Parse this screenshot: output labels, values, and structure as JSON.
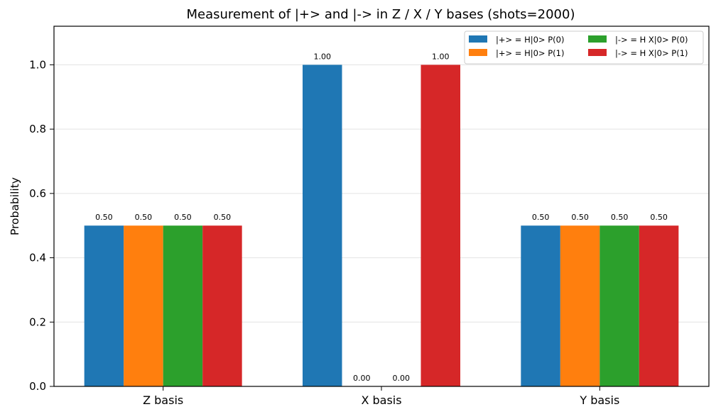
{
  "chart_data": {
    "type": "bar",
    "title": "Measurement of |+> and |-> in Z / X / Y bases (shots=2000)",
    "xlabel": "",
    "ylabel": "Probability",
    "ylim": [
      0,
      1.12
    ],
    "yticks": [
      "0.0",
      "0.2",
      "0.4",
      "0.6",
      "0.8",
      "1.0"
    ],
    "grid": "horizontal",
    "legend_position": "top-right",
    "categories": [
      "Z basis",
      "X basis",
      "Y basis"
    ],
    "series": [
      {
        "name": "|+> = H|0> P(0)",
        "color": "#1f77b4",
        "values": [
          0.5,
          1.0,
          0.5
        ],
        "labels": [
          "0.50",
          "1.00",
          "0.50"
        ]
      },
      {
        "name": "|+> = H|0> P(1)",
        "color": "#ff7f0e",
        "values": [
          0.5,
          0.0,
          0.5
        ],
        "labels": [
          "0.50",
          "0.00",
          "0.50"
        ]
      },
      {
        "name": "|-> = H X|0> P(0)",
        "color": "#2ca02c",
        "values": [
          0.5,
          0.0,
          0.5
        ],
        "labels": [
          "0.50",
          "0.00",
          "0.50"
        ]
      },
      {
        "name": "|-> = H X|0> P(1)",
        "color": "#d62728",
        "values": [
          0.5,
          1.0,
          0.5
        ],
        "labels": [
          "0.50",
          "1.00",
          "0.50"
        ]
      }
    ]
  }
}
